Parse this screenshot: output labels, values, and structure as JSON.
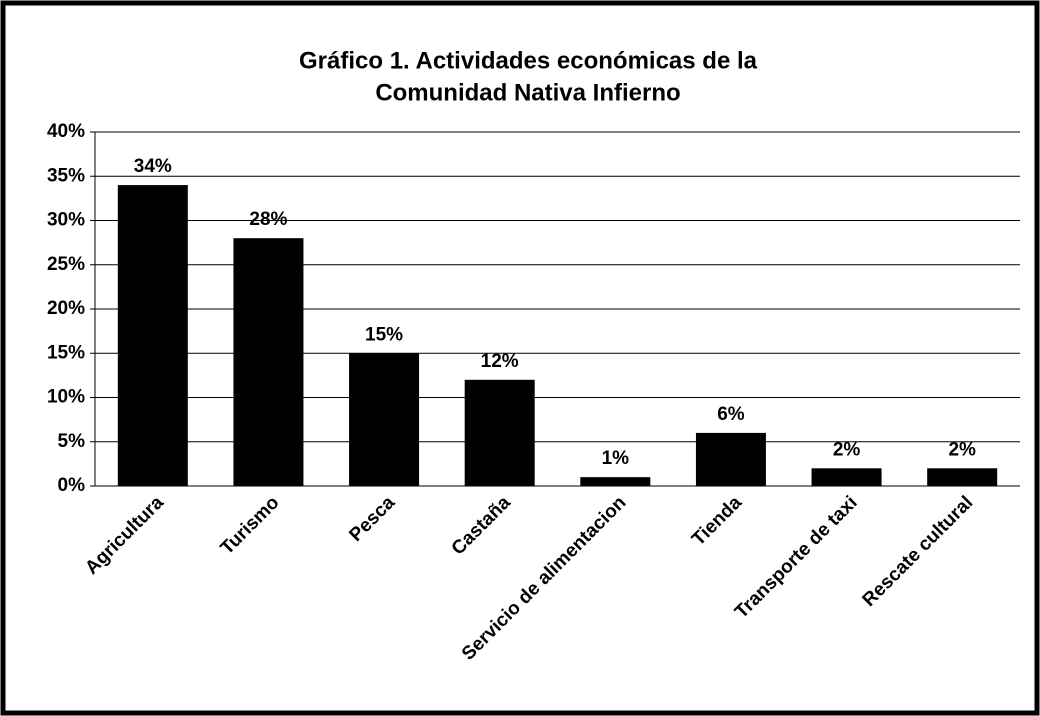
{
  "chart_data": {
    "type": "bar",
    "title": [
      "Gráfico 1. Actividades  económicas de la",
      "Comunidad Nativa Infierno"
    ],
    "categories": [
      "Agricultura",
      "Turismo",
      "Pesca",
      "Castaña",
      "Servicio de alimentacion",
      "Tienda",
      "Transporte de taxi",
      "Rescate cultural"
    ],
    "values": [
      34,
      28,
      15,
      12,
      1,
      6,
      2,
      2
    ],
    "value_labels": [
      "34%",
      "28%",
      "15%",
      "12%",
      "1%",
      "6%",
      "2%",
      "2%"
    ],
    "color": "#000000",
    "ylim": [
      0,
      40
    ],
    "yticks": [
      {
        "value": 0,
        "label": "0%"
      },
      {
        "value": 5,
        "label": "5%"
      },
      {
        "value": 10,
        "label": "10%"
      },
      {
        "value": 15,
        "label": "15%"
      },
      {
        "value": 20,
        "label": "20%"
      },
      {
        "value": 25,
        "label": "25%"
      },
      {
        "value": 30,
        "label": "30%"
      },
      {
        "value": 35,
        "label": "35%"
      },
      {
        "value": 40,
        "label": "40%"
      }
    ],
    "grid": true
  }
}
